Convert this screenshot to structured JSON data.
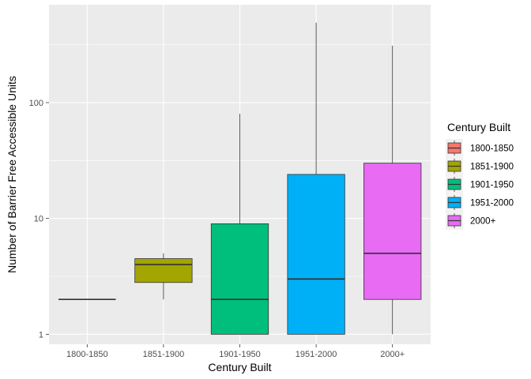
{
  "chart_data": {
    "type": "boxplot",
    "xlabel": "Century Built",
    "ylabel": "Number of Barrier Free Accessible Units",
    "y_scale": "log10",
    "ylim": [
      0.82,
      700
    ],
    "y_ticks": [
      1,
      10,
      100
    ],
    "y_tick_labels": [
      "1",
      "10",
      "100"
    ],
    "grid": true,
    "categories": [
      "1800-1850",
      "1851-1900",
      "1901-1950",
      "1951-2000",
      "2000+"
    ],
    "boxes": [
      {
        "category": "1800-1850",
        "min": 2,
        "q1": 2,
        "median": 2,
        "q3": 2,
        "max": 2
      },
      {
        "category": "1851-1900",
        "min": 2,
        "q1": 2.8,
        "median": 4,
        "q3": 4.5,
        "max": 5
      },
      {
        "category": "1901-1950",
        "min": 1,
        "q1": 1,
        "median": 2,
        "q3": 9,
        "max": 80
      },
      {
        "category": "1951-2000",
        "min": 1,
        "q1": 1,
        "median": 3,
        "q3": 24,
        "max": 490
      },
      {
        "category": "2000+",
        "min": 1,
        "q1": 2,
        "median": 5,
        "q3": 30,
        "max": 310
      }
    ],
    "colors": [
      "#F8766D",
      "#A3A500",
      "#00BF7D",
      "#00B0F6",
      "#E76BF3"
    ],
    "legend": {
      "title": "Century Built",
      "position": "right",
      "entries": [
        "1800-1850",
        "1851-1900",
        "1901-1950",
        "1951-2000",
        "2000+"
      ]
    }
  }
}
